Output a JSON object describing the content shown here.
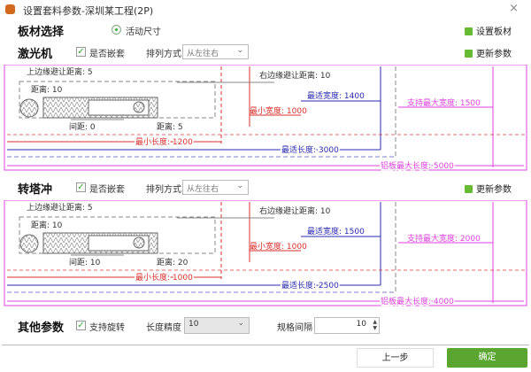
{
  "window": {
    "title": "设置套料参数-深圳某工程(2P)",
    "close": "×"
  },
  "board": {
    "label": "板材选择",
    "radio_label": "活动尺寸",
    "radio_checked": true,
    "set_board_button": "设置板材"
  },
  "panels": [
    {
      "label": "激光机",
      "nest_label": "是否嵌套",
      "nest_checked": true,
      "arrange_label": "排列方式",
      "arrange_value": "从左往右",
      "update_button": "更新参数",
      "top_margin": "上边缘避让距离: 5",
      "left_distance": "距离: 10",
      "gap": "间距: 0",
      "bottom_distance": "距离: 5",
      "right_margin": "右边缘避让距离: 10",
      "min_width": "最小宽度: 1000",
      "best_width": "最适宽度: 1400",
      "max_width": "支持最大宽度: 1500",
      "min_length": "最小长度: 1200",
      "best_length": "最适长度: 3000",
      "max_length": "铝板最大长度: 5000"
    },
    {
      "label": "转塔冲",
      "nest_label": "是否嵌套",
      "nest_checked": true,
      "arrange_label": "排列方式",
      "arrange_value": "从左往右",
      "update_button": "更新参数",
      "top_margin": "上边缘避让距离: 5",
      "left_distance": "距离: 10",
      "gap": "间距: 10",
      "bottom_distance": "距离: 20",
      "right_margin": "右边缘避让距离: 10",
      "min_width": "最小宽度: 1000",
      "best_width": "最适宽度: 1500",
      "max_width": "支持最大宽度: 2000",
      "min_length": "最小长度: 1000",
      "best_length": "最适长度: 2500",
      "max_length": "铝板最大长度: 4000"
    }
  ],
  "other": {
    "label": "其他参数",
    "rotate_label": "支持旋转",
    "rotate_checked": true,
    "precision_label": "长度精度",
    "precision_value": "10",
    "spacing_label": "规格间隔",
    "spacing_value": "10"
  },
  "footer": {
    "prev_button": "上一步",
    "ok_button": "确定"
  },
  "colors": {
    "red": "#d9302c",
    "blue": "#2a2ab0",
    "magenta": "#e040e0",
    "ok_green": "#5aa630"
  }
}
